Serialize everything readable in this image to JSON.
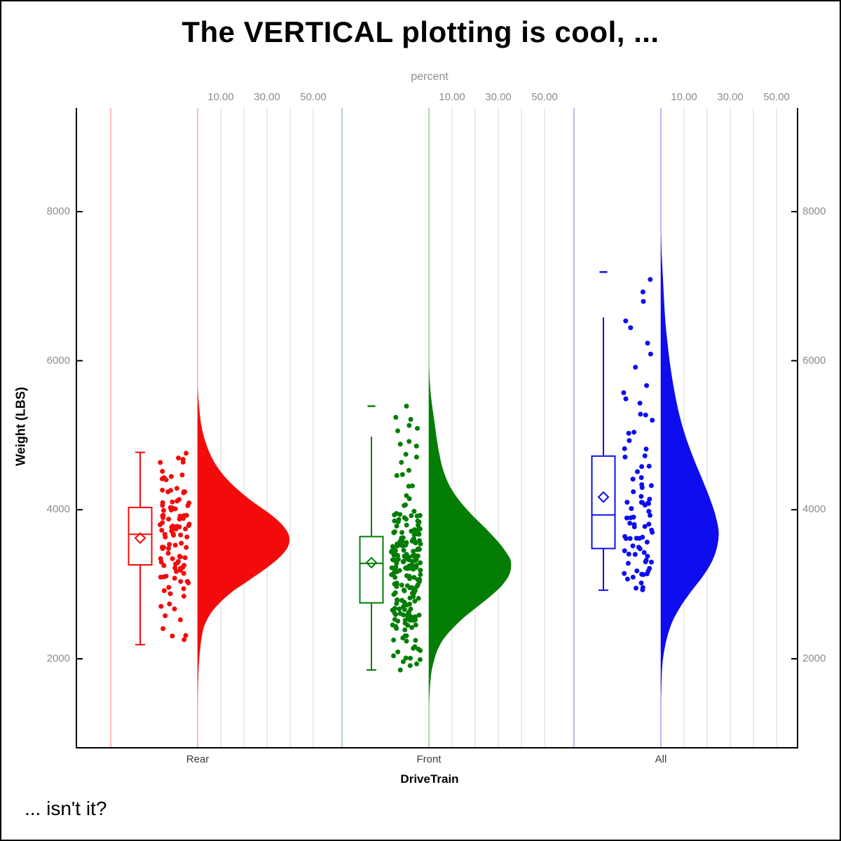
{
  "title": "The VERTICAL plotting is cool, ...",
  "footnote": "... isn't it?",
  "style": {
    "background": "#ffffff",
    "axis_color": "#000000",
    "grid_color": "#ececec",
    "tick_label_color": "#8c8c8c",
    "title_color": "#000000"
  },
  "chart_data": {
    "type": "raincloud",
    "description": "Vertical raincloud plot: box plot + jittered strip + right-side half-violin density per DriveTrain group",
    "x_axis": {
      "label": "DriveTrain",
      "categories": [
        "Rear",
        "Front",
        "All"
      ]
    },
    "y_axis": {
      "label": "Weight (LBS)",
      "tick_values": [
        2000,
        4000,
        6000,
        8000
      ],
      "range": [
        800,
        9400
      ],
      "ticks_on_both_sides": true
    },
    "percent_axis": {
      "label": "percent",
      "tick_labels": [
        "10.00",
        "30.00",
        "50.00"
      ],
      "tick_values": [
        10,
        30,
        50
      ],
      "gridline_values": [
        10,
        20,
        30,
        40,
        50
      ],
      "repeated_per_group": true
    },
    "groups": [
      {
        "name": "Rear",
        "color": "#f30b0b",
        "pale_color": "#f8bcbc",
        "box": {
          "whisker_low": 2190,
          "q1": 3260,
          "median": 3670,
          "mean": 3620,
          "q3": 4030,
          "whisker_high": 4770,
          "outliers": []
        },
        "jitter": {
          "count": 105,
          "weight_deciles": [
            2190,
            2900,
            3160,
            3300,
            3480,
            3670,
            3790,
            3950,
            4100,
            4350,
            4770
          ]
        },
        "violin_profile_weight_pct": [
          [
            5650,
            0
          ],
          [
            5400,
            0.6
          ],
          [
            5150,
            1.5
          ],
          [
            4900,
            3.5
          ],
          [
            4650,
            7
          ],
          [
            4400,
            13
          ],
          [
            4150,
            22
          ],
          [
            3950,
            31
          ],
          [
            3800,
            36.5
          ],
          [
            3650,
            39.5
          ],
          [
            3500,
            39
          ],
          [
            3350,
            35
          ],
          [
            3200,
            29
          ],
          [
            3050,
            22
          ],
          [
            2900,
            15
          ],
          [
            2750,
            9.5
          ],
          [
            2600,
            5.5
          ],
          [
            2450,
            3
          ],
          [
            2300,
            1.8
          ],
          [
            2100,
            1
          ],
          [
            1900,
            0.5
          ],
          [
            1650,
            0.15
          ],
          [
            1450,
            0
          ]
        ]
      },
      {
        "name": "Front",
        "color": "#047d04",
        "pale_color": "#b4d6b4",
        "box": {
          "whisker_low": 1850,
          "q1": 2750,
          "median": 3280,
          "mean": 3290,
          "q3": 3640,
          "whisker_high": 4980,
          "outliers": [
            5390
          ]
        },
        "jitter": {
          "count": 218,
          "weight_deciles": [
            1850,
            2450,
            2640,
            2860,
            3080,
            3280,
            3380,
            3520,
            3700,
            3950,
            5390
          ]
        },
        "violin_profile_weight_pct": [
          [
            5950,
            0
          ],
          [
            5750,
            0.3
          ],
          [
            5550,
            0.8
          ],
          [
            5350,
            1.6
          ],
          [
            5150,
            2.5
          ],
          [
            4950,
            3.4
          ],
          [
            4750,
            4.5
          ],
          [
            4550,
            6
          ],
          [
            4350,
            8.5
          ],
          [
            4150,
            12.5
          ],
          [
            3950,
            18
          ],
          [
            3750,
            24.5
          ],
          [
            3550,
            30.5
          ],
          [
            3400,
            34
          ],
          [
            3300,
            35.5
          ],
          [
            3150,
            35
          ],
          [
            3000,
            32
          ],
          [
            2850,
            27
          ],
          [
            2700,
            21
          ],
          [
            2550,
            15
          ],
          [
            2400,
            10
          ],
          [
            2250,
            6
          ],
          [
            2100,
            3.5
          ],
          [
            1950,
            2
          ],
          [
            1800,
            1
          ],
          [
            1600,
            0.4
          ],
          [
            1400,
            0
          ]
        ]
      },
      {
        "name": "All",
        "color": "#0d0df0",
        "pale_color": "#bbbbee",
        "box": {
          "whisker_low": 2920,
          "q1": 3480,
          "median": 3930,
          "mean": 4170,
          "q3": 4720,
          "whisker_high": 6580,
          "outliers": [
            7190
          ]
        },
        "jitter": {
          "count": 84,
          "weight_deciles": [
            2920,
            3120,
            3330,
            3540,
            3740,
            3930,
            4150,
            4450,
            4950,
            5700,
            7190
          ]
        },
        "violin_profile_weight_pct": [
          [
            7700,
            0
          ],
          [
            7400,
            0.4
          ],
          [
            7100,
            0.9
          ],
          [
            6800,
            1.4
          ],
          [
            6500,
            2
          ],
          [
            6200,
            3
          ],
          [
            5900,
            4.2
          ],
          [
            5600,
            5.8
          ],
          [
            5300,
            7.8
          ],
          [
            5000,
            10.5
          ],
          [
            4700,
            14
          ],
          [
            4400,
            18
          ],
          [
            4100,
            21.8
          ],
          [
            3900,
            23.8
          ],
          [
            3700,
            25
          ],
          [
            3500,
            24.3
          ],
          [
            3300,
            22
          ],
          [
            3100,
            18
          ],
          [
            2900,
            13
          ],
          [
            2700,
            8.5
          ],
          [
            2500,
            5
          ],
          [
            2300,
            2.8
          ],
          [
            2100,
            1.4
          ],
          [
            1900,
            0.6
          ],
          [
            1650,
            0.2
          ],
          [
            1400,
            0
          ]
        ]
      }
    ]
  }
}
